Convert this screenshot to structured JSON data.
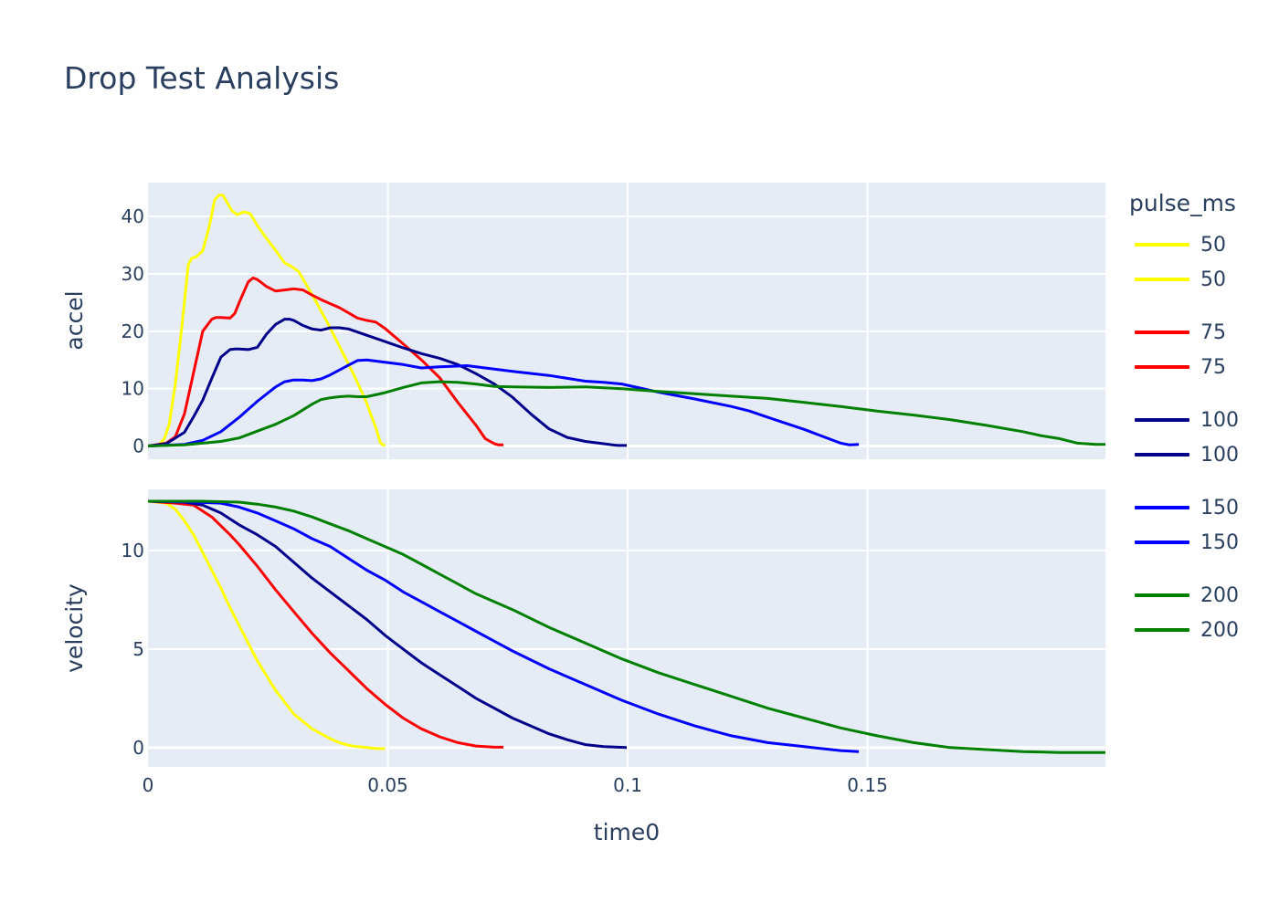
{
  "title": "Drop Test Analysis",
  "legend": {
    "title": "pulse_ms",
    "items": [
      {
        "label": "50",
        "color": "#ffff00"
      },
      {
        "label": "50",
        "color": "#ffff00"
      },
      {
        "label": "75",
        "color": "#ff0000"
      },
      {
        "label": "75",
        "color": "#ff0000"
      },
      {
        "label": "100",
        "color": "#00008b"
      },
      {
        "label": "100",
        "color": "#00008b"
      },
      {
        "label": "150",
        "color": "#0000ff"
      },
      {
        "label": "150",
        "color": "#0000ff"
      },
      {
        "label": "200",
        "color": "#008000"
      },
      {
        "label": "200",
        "color": "#008000"
      }
    ]
  },
  "colors": {
    "plot_bg": "#e5ecf6",
    "grid": "#ffffff",
    "text": "#2a3f5f"
  },
  "chart_data": [
    {
      "type": "line",
      "title": "Drop Test Analysis",
      "subplot": "top",
      "xlabel": "",
      "ylabel": "accel",
      "xlim": [
        0,
        0.1996
      ],
      "ylim": [
        -2.3,
        45.9
      ],
      "yticks": [
        0,
        10,
        20,
        30,
        40
      ],
      "xticks": [
        0,
        0.05,
        0.1,
        0.15
      ],
      "grid": true,
      "legend_title": "pulse_ms",
      "legend_position": "right",
      "series": [
        {
          "name": "50",
          "color": "#ffff00",
          "x": [
            0,
            0.0023,
            0.0034,
            0.0044,
            0.0057,
            0.007,
            0.0084,
            0.0091,
            0.0101,
            0.0114,
            0.0127,
            0.0139,
            0.0148,
            0.0156,
            0.0163,
            0.0175,
            0.0186,
            0.0199,
            0.0213,
            0.0228,
            0.0247,
            0.0266,
            0.0285,
            0.0297,
            0.0314,
            0.0333,
            0.0352,
            0.0374,
            0.0399,
            0.0428,
            0.0452,
            0.0475,
            0.0485,
            0.0494
          ],
          "y": [
            0,
            0.2,
            1.3,
            3.7,
            10.8,
            20.4,
            31.6,
            32.7,
            33,
            34,
            38,
            42.9,
            43.7,
            43.7,
            42.7,
            41,
            40.3,
            40.8,
            40.5,
            38.4,
            36.2,
            34.1,
            31.9,
            31.4,
            30.4,
            27.7,
            24.9,
            21.5,
            17.4,
            12.6,
            8.3,
            3.2,
            0.5,
            0
          ]
        },
        {
          "name": "75",
          "color": "#ff0000",
          "x": [
            0,
            0.0038,
            0.0057,
            0.0076,
            0.0095,
            0.0114,
            0.0133,
            0.0142,
            0.0152,
            0.0171,
            0.0181,
            0.019,
            0.0209,
            0.0219,
            0.0228,
            0.0247,
            0.0266,
            0.0285,
            0.0304,
            0.0323,
            0.0342,
            0.0361,
            0.038,
            0.0399,
            0.0418,
            0.0437,
            0.0456,
            0.0475,
            0.0494,
            0.0532,
            0.057,
            0.0608,
            0.0646,
            0.0684,
            0.0703,
            0.0722,
            0.0731,
            0.0741
          ],
          "y": [
            0,
            0.5,
            1.6,
            5.6,
            12.8,
            20.0,
            22.1,
            22.4,
            22.4,
            22.3,
            23.1,
            25.0,
            28.6,
            29.3,
            29.0,
            27.8,
            27.0,
            27.2,
            27.4,
            27.2,
            26.3,
            25.5,
            24.8,
            24.1,
            23.2,
            22.3,
            21.9,
            21.6,
            20.5,
            17.8,
            15.0,
            11.9,
            7.6,
            3.6,
            1.3,
            0.4,
            0.2,
            0.2
          ]
        },
        {
          "name": "100",
          "color": "#00008b",
          "x": [
            0,
            0.0038,
            0.0076,
            0.0095,
            0.0114,
            0.0133,
            0.0152,
            0.0171,
            0.0181,
            0.019,
            0.0209,
            0.0228,
            0.0247,
            0.0266,
            0.0285,
            0.0295,
            0.0304,
            0.0323,
            0.0342,
            0.0361,
            0.038,
            0.0399,
            0.0418,
            0.0456,
            0.0494,
            0.0532,
            0.057,
            0.0608,
            0.0646,
            0.0684,
            0.0722,
            0.076,
            0.0798,
            0.0836,
            0.0874,
            0.0912,
            0.095,
            0.0969,
            0.0979,
            0.0998
          ],
          "y": [
            0,
            0.4,
            2.4,
            5.1,
            8.0,
            11.8,
            15.5,
            16.8,
            16.9,
            16.9,
            16.8,
            17.2,
            19.5,
            21.2,
            22.1,
            22.1,
            21.9,
            21.0,
            20.4,
            20.2,
            20.6,
            20.6,
            20.4,
            19.3,
            18.2,
            17.1,
            16.1,
            15.3,
            14.2,
            12.6,
            10.8,
            8.5,
            5.6,
            3.0,
            1.5,
            0.8,
            0.4,
            0.2,
            0.1,
            0.1
          ]
        },
        {
          "name": "150",
          "color": "#0000ff",
          "x": [
            0,
            0.0076,
            0.0114,
            0.0152,
            0.019,
            0.0228,
            0.0266,
            0.0285,
            0.0304,
            0.0323,
            0.0342,
            0.0361,
            0.038,
            0.0418,
            0.0437,
            0.0456,
            0.0475,
            0.0532,
            0.057,
            0.0608,
            0.0665,
            0.0703,
            0.076,
            0.0836,
            0.0874,
            0.0912,
            0.095,
            0.0988,
            0.1064,
            0.114,
            0.1216,
            0.1254,
            0.1292,
            0.1368,
            0.1406,
            0.1444,
            0.1463,
            0.1482
          ],
          "y": [
            0,
            0.3,
            1.0,
            2.5,
            5.0,
            7.8,
            10.3,
            11.2,
            11.5,
            11.5,
            11.4,
            11.7,
            12.4,
            14.1,
            14.9,
            15.0,
            14.8,
            14.2,
            13.6,
            13.8,
            14.0,
            13.6,
            13.0,
            12.3,
            11.8,
            11.3,
            11.1,
            10.8,
            9.4,
            8.2,
            6.9,
            6.1,
            5.0,
            2.9,
            1.7,
            0.5,
            0.2,
            0.3
          ]
        },
        {
          "name": "200",
          "color": "#008000",
          "x": [
            0,
            0.0076,
            0.0152,
            0.019,
            0.0228,
            0.0266,
            0.0304,
            0.0342,
            0.0361,
            0.038,
            0.0399,
            0.0418,
            0.0437,
            0.0456,
            0.0494,
            0.0532,
            0.057,
            0.0608,
            0.0646,
            0.0684,
            0.0722,
            0.076,
            0.0836,
            0.0912,
            0.0988,
            0.1064,
            0.114,
            0.1216,
            0.1254,
            0.1292,
            0.1368,
            0.1444,
            0.152,
            0.1596,
            0.1672,
            0.1748,
            0.1824,
            0.1862,
            0.19,
            0.1938,
            0.1976,
            0.1996
          ],
          "y": [
            0,
            0.2,
            0.8,
            1.4,
            2.6,
            3.8,
            5.3,
            7.3,
            8.1,
            8.4,
            8.6,
            8.7,
            8.6,
            8.6,
            9.3,
            10.2,
            11.0,
            11.2,
            11.1,
            10.8,
            10.4,
            10.3,
            10.2,
            10.3,
            10.0,
            9.5,
            9.1,
            8.7,
            8.5,
            8.3,
            7.6,
            6.9,
            6.1,
            5.4,
            4.6,
            3.6,
            2.5,
            1.8,
            1.3,
            0.5,
            0.3,
            0.3
          ]
        }
      ]
    },
    {
      "type": "line",
      "subplot": "bottom",
      "xlabel": "time0",
      "ylabel": "velocity",
      "xlim": [
        0,
        0.1996
      ],
      "ylim": [
        -0.98,
        13.1
      ],
      "yticks": [
        0,
        5,
        10
      ],
      "xticks": [
        0,
        0.05,
        0.1,
        0.15
      ],
      "xtick_labels": [
        "0",
        "0.05",
        "0.1",
        "0.15"
      ],
      "grid": true,
      "series": [
        {
          "name": "50",
          "color": "#ffff00",
          "x": [
            0,
            0.0038,
            0.0057,
            0.0076,
            0.0095,
            0.0114,
            0.0133,
            0.0152,
            0.0171,
            0.019,
            0.0228,
            0.0266,
            0.0304,
            0.0342,
            0.038,
            0.0399,
            0.0418,
            0.0437,
            0.0456,
            0.0475,
            0.0494
          ],
          "y": [
            12.5,
            12.4,
            12.1,
            11.5,
            10.8,
            9.9,
            9.0,
            8.1,
            7.1,
            6.2,
            4.4,
            2.9,
            1.7,
            0.95,
            0.45,
            0.25,
            0.12,
            0.05,
            0.0,
            -0.05,
            -0.05
          ]
        },
        {
          "name": "75",
          "color": "#ff0000",
          "x": [
            0,
            0.0057,
            0.0095,
            0.0133,
            0.0171,
            0.019,
            0.0228,
            0.0266,
            0.0304,
            0.0342,
            0.038,
            0.0418,
            0.0456,
            0.0494,
            0.0532,
            0.057,
            0.0608,
            0.0646,
            0.0684,
            0.0722,
            0.0741
          ],
          "y": [
            12.5,
            12.4,
            12.3,
            11.7,
            10.8,
            10.3,
            9.2,
            8.0,
            6.9,
            5.8,
            4.8,
            3.9,
            3.0,
            2.2,
            1.5,
            0.95,
            0.55,
            0.25,
            0.08,
            0.02,
            0.02
          ]
        },
        {
          "name": "100",
          "color": "#00008b",
          "x": [
            0,
            0.0076,
            0.0114,
            0.0152,
            0.019,
            0.0228,
            0.0266,
            0.0304,
            0.0342,
            0.038,
            0.0418,
            0.0456,
            0.0494,
            0.0532,
            0.057,
            0.0608,
            0.0646,
            0.0684,
            0.0722,
            0.076,
            0.0798,
            0.0836,
            0.0874,
            0.0912,
            0.095,
            0.0998
          ],
          "y": [
            12.5,
            12.45,
            12.3,
            11.9,
            11.3,
            10.8,
            10.2,
            9.4,
            8.6,
            7.9,
            7.2,
            6.5,
            5.7,
            5.0,
            4.3,
            3.7,
            3.1,
            2.5,
            2.0,
            1.5,
            1.1,
            0.7,
            0.4,
            0.15,
            0.05,
            0.0
          ]
        },
        {
          "name": "150",
          "color": "#0000ff",
          "x": [
            0,
            0.0095,
            0.0152,
            0.019,
            0.0228,
            0.0266,
            0.0304,
            0.0342,
            0.038,
            0.0418,
            0.0456,
            0.0494,
            0.0532,
            0.057,
            0.0608,
            0.0646,
            0.0684,
            0.0722,
            0.076,
            0.0836,
            0.0912,
            0.0988,
            0.1064,
            0.114,
            0.1216,
            0.1292,
            0.1368,
            0.1444,
            0.1482
          ],
          "y": [
            12.5,
            12.45,
            12.4,
            12.2,
            11.9,
            11.5,
            11.1,
            10.6,
            10.2,
            9.6,
            9.0,
            8.5,
            7.9,
            7.4,
            6.9,
            6.4,
            5.9,
            5.4,
            4.9,
            4.0,
            3.2,
            2.4,
            1.7,
            1.1,
            0.6,
            0.25,
            0.05,
            -0.15,
            -0.2
          ]
        },
        {
          "name": "200",
          "color": "#008000",
          "x": [
            0,
            0.0114,
            0.019,
            0.0228,
            0.0266,
            0.0304,
            0.0342,
            0.038,
            0.0418,
            0.0456,
            0.0494,
            0.0532,
            0.057,
            0.0608,
            0.0646,
            0.0684,
            0.076,
            0.0836,
            0.0912,
            0.0988,
            0.1064,
            0.114,
            0.1216,
            0.1292,
            0.1368,
            0.1444,
            0.152,
            0.1596,
            0.1672,
            0.1748,
            0.1824,
            0.19,
            0.1938,
            0.1996
          ],
          "y": [
            12.5,
            12.5,
            12.45,
            12.35,
            12.2,
            12.0,
            11.7,
            11.35,
            11.0,
            10.6,
            10.2,
            9.8,
            9.3,
            8.8,
            8.3,
            7.8,
            7.0,
            6.1,
            5.3,
            4.5,
            3.8,
            3.2,
            2.6,
            2.0,
            1.5,
            1.0,
            0.6,
            0.25,
            0.0,
            -0.1,
            -0.2,
            -0.25,
            -0.25,
            -0.25
          ]
        }
      ]
    }
  ]
}
